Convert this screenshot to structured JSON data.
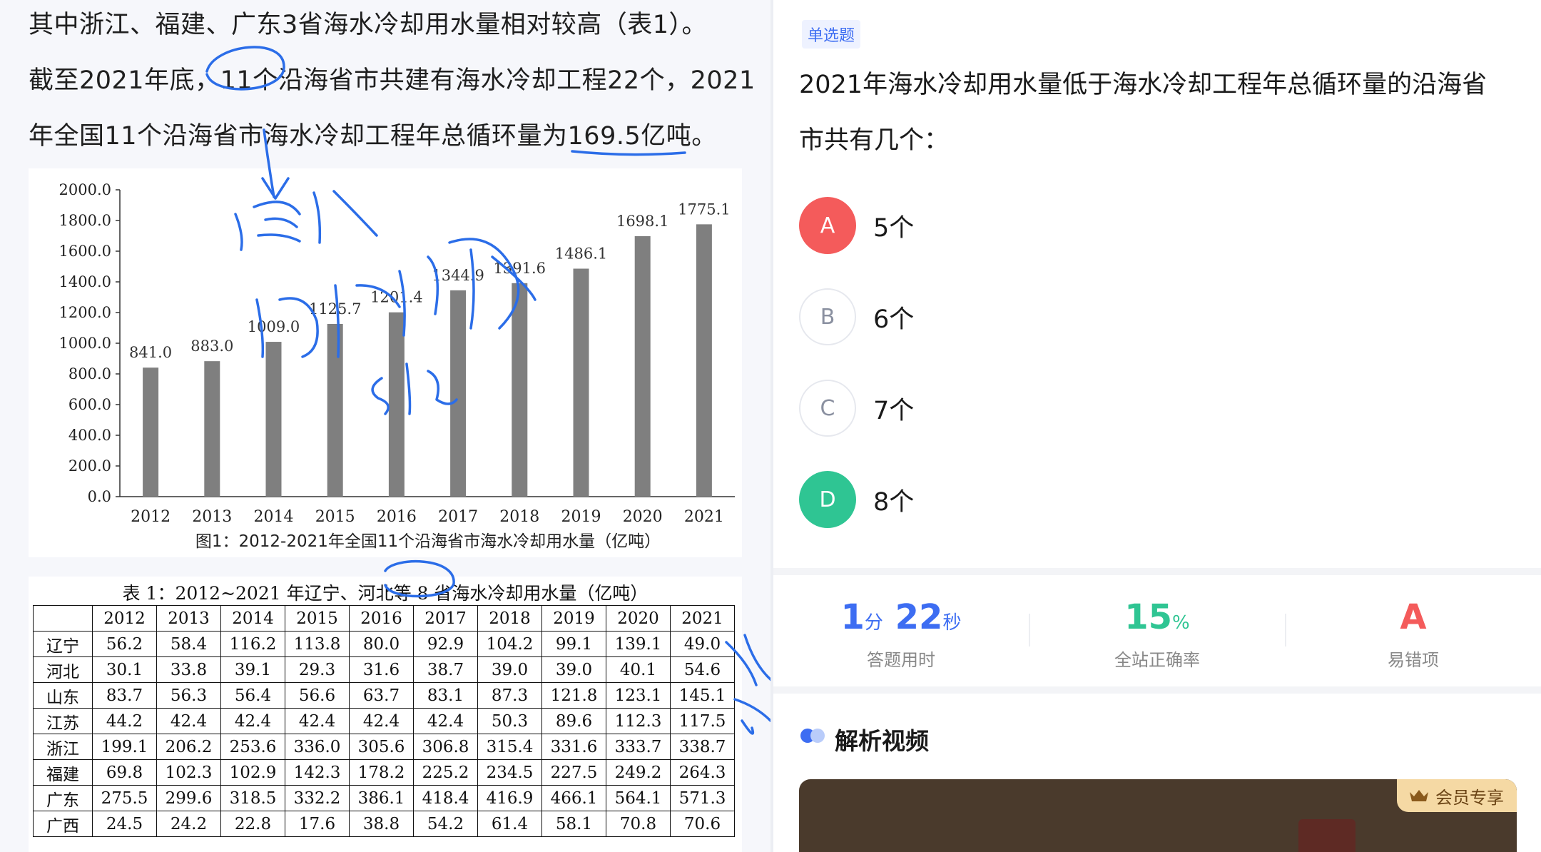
{
  "passage": {
    "line1": "其中浙江、福建、广东3省海水冷却用水量相对较高（表1）。",
    "line2": "截至2021年底，11个沿海省市共建有海水冷却工程22个，2021",
    "line3": "年全国11个沿海省市海水冷却工程年总循环量为169.5亿吨。"
  },
  "chart_data": {
    "type": "bar",
    "title": "图1：2012-2021年全国11个沿海省市海水冷却用水量（亿吨）",
    "categories": [
      "2012",
      "2013",
      "2014",
      "2015",
      "2016",
      "2017",
      "2018",
      "2019",
      "2020",
      "2021"
    ],
    "values": [
      841.0,
      883.0,
      1009.0,
      1125.7,
      1201.4,
      1344.9,
      1391.6,
      1486.1,
      1698.1,
      1775.1
    ],
    "value_labels": [
      "841.0",
      "883.0",
      "1009.0",
      "1125.7",
      "1201.4",
      "1344.9",
      "1391.6",
      "1486.1",
      "1698.1",
      "1775.1"
    ],
    "yticks": [
      "0.0",
      "200.0",
      "400.0",
      "600.0",
      "800.0",
      "1000.0",
      "1200.0",
      "1400.0",
      "1600.0",
      "1800.0",
      "2000.0"
    ],
    "ylim": [
      0,
      2000
    ],
    "bar_color": "#7f7f7f",
    "xlabel": "",
    "ylabel": ""
  },
  "table": {
    "title": "表 1：2012~2021 年辽宁、河北等 8 省海水冷却用水量（亿吨）",
    "years": [
      "2012",
      "2013",
      "2014",
      "2015",
      "2016",
      "2017",
      "2018",
      "2019",
      "2020",
      "2021"
    ],
    "rows": [
      {
        "province": "辽宁",
        "values": [
          "56.2",
          "58.4",
          "116.2",
          "113.8",
          "80.0",
          "92.9",
          "104.2",
          "99.1",
          "139.1",
          "49.0"
        ]
      },
      {
        "province": "河北",
        "values": [
          "30.1",
          "33.8",
          "39.1",
          "29.3",
          "31.6",
          "38.7",
          "39.0",
          "39.0",
          "40.1",
          "54.6"
        ]
      },
      {
        "province": "山东",
        "values": [
          "83.7",
          "56.3",
          "56.4",
          "56.6",
          "63.7",
          "83.1",
          "87.3",
          "121.8",
          "123.1",
          "145.1"
        ]
      },
      {
        "province": "江苏",
        "values": [
          "44.2",
          "42.4",
          "42.4",
          "42.4",
          "42.4",
          "42.4",
          "50.3",
          "89.6",
          "112.3",
          "117.5"
        ]
      },
      {
        "province": "浙江",
        "values": [
          "199.1",
          "206.2",
          "253.6",
          "336.0",
          "305.6",
          "306.8",
          "315.4",
          "331.6",
          "333.7",
          "338.7"
        ]
      },
      {
        "province": "福建",
        "values": [
          "69.8",
          "102.3",
          "102.9",
          "142.3",
          "178.2",
          "225.2",
          "234.5",
          "227.5",
          "249.2",
          "264.3"
        ]
      },
      {
        "province": "广东",
        "values": [
          "275.5",
          "299.6",
          "318.5",
          "332.2",
          "386.1",
          "418.4",
          "416.9",
          "466.1",
          "564.1",
          "571.3"
        ]
      },
      {
        "province": "广西",
        "values": [
          "24.5",
          "24.2",
          "22.8",
          "17.6",
          "38.8",
          "54.2",
          "61.4",
          "58.1",
          "70.8",
          "70.6"
        ]
      }
    ]
  },
  "question": {
    "tag": "单选题",
    "line1": "2021年海水冷却用水量低于海水冷却工程年总循环量的沿海省",
    "line2": "市共有几个：",
    "options": [
      {
        "letter": "A",
        "text": "5个",
        "state": "wrong"
      },
      {
        "letter": "B",
        "text": "6个",
        "state": "normal"
      },
      {
        "letter": "C",
        "text": "7个",
        "state": "normal"
      },
      {
        "letter": "D",
        "text": "8个",
        "state": "correct"
      }
    ]
  },
  "stats": {
    "time_min": "1",
    "time_min_unit": "分",
    "time_sec": "22",
    "time_sec_unit": "秒",
    "time_label": "答题用时",
    "accuracy": "15",
    "accuracy_unit": "%",
    "accuracy_label": "全站正确率",
    "common_wrong": "A",
    "common_wrong_label": "易错项"
  },
  "video": {
    "title": "解析视频",
    "badge": "会员专享"
  },
  "colors": {
    "wrong": "#f45b5b",
    "correct": "#2fc593",
    "accent": "#3d6df2",
    "ink": "#2b6de8"
  }
}
